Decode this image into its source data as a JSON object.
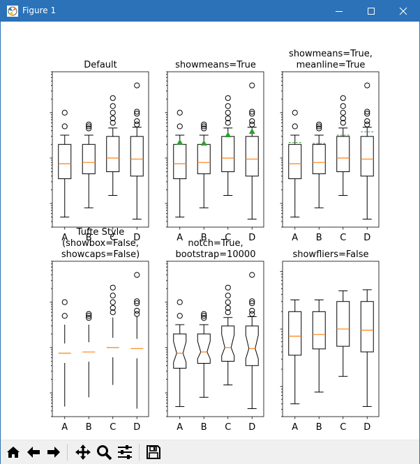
{
  "window": {
    "title": "Figure 1",
    "icons": [
      "matplotlib-app-icon",
      "minimize-icon",
      "maximize-icon",
      "close-icon"
    ]
  },
  "toolbar": {
    "buttons": [
      {
        "name": "home-icon"
      },
      {
        "name": "back-arrow-icon"
      },
      {
        "name": "forward-arrow-icon"
      },
      {
        "name": "pan-icon"
      },
      {
        "name": "zoom-icon"
      },
      {
        "name": "configure-subplots-icon"
      },
      {
        "name": "save-icon"
      }
    ]
  },
  "colors": {
    "titlebar": "#2b72b8",
    "median": "#ff7f0e",
    "mean": "#2ca02c",
    "box": "#000000"
  },
  "chart_data": [
    {
      "type": "box",
      "title": "Default",
      "categories": [
        "A",
        "B",
        "C",
        "D"
      ],
      "yscale": "log",
      "ylim": [
        0.03,
        80
      ],
      "yticklabels": "hidden",
      "showmeans": false,
      "meanline": false,
      "showbox": true,
      "showcaps": true,
      "showfliers": true,
      "notch": false,
      "series": [
        {
          "whislo": 0.05,
          "q1": 0.35,
          "med": 0.75,
          "q3": 2.0,
          "whishi": 3.2,
          "mean": 2.2,
          "fliers": [
            5,
            10
          ]
        },
        {
          "whislo": 0.08,
          "q1": 0.45,
          "med": 0.8,
          "q3": 2.0,
          "whishi": 3.2,
          "mean": 2.1,
          "fliers": [
            4.5,
            5,
            5.5
          ]
        },
        {
          "whislo": 0.15,
          "q1": 0.5,
          "med": 1.0,
          "q3": 3.0,
          "whishi": 4.6,
          "mean": 3.2,
          "fliers": [
            6,
            7.5,
            10,
            14,
            21
          ]
        },
        {
          "whislo": 0.045,
          "q1": 0.4,
          "med": 0.95,
          "q3": 3.0,
          "whishi": 4.8,
          "mean": 3.8,
          "fliers": [
            5.5,
            6.5,
            9.5,
            10.5,
            40
          ]
        }
      ]
    },
    {
      "type": "box",
      "title": "showmeans=True",
      "categories": [
        "A",
        "B",
        "C",
        "D"
      ],
      "yscale": "log",
      "ylim": [
        0.03,
        80
      ],
      "yticklabels": "hidden",
      "showmeans": true,
      "meanline": false,
      "showbox": true,
      "showcaps": true,
      "showfliers": true,
      "notch": false,
      "series": [
        {
          "whislo": 0.05,
          "q1": 0.35,
          "med": 0.75,
          "q3": 2.0,
          "whishi": 3.2,
          "mean": 2.2,
          "fliers": [
            5,
            10
          ]
        },
        {
          "whislo": 0.08,
          "q1": 0.45,
          "med": 0.8,
          "q3": 2.0,
          "whishi": 3.2,
          "mean": 2.1,
          "fliers": [
            4.5,
            5,
            5.5
          ]
        },
        {
          "whislo": 0.15,
          "q1": 0.5,
          "med": 1.0,
          "q3": 3.0,
          "whishi": 4.6,
          "mean": 3.2,
          "fliers": [
            6,
            7.5,
            10,
            14,
            21
          ]
        },
        {
          "whislo": 0.045,
          "q1": 0.4,
          "med": 0.95,
          "q3": 3.0,
          "whishi": 4.8,
          "mean": 3.8,
          "fliers": [
            5.5,
            6.5,
            9.5,
            10.5,
            40
          ]
        }
      ]
    },
    {
      "type": "box",
      "title": "showmeans=True,\nmeanline=True",
      "categories": [
        "A",
        "B",
        "C",
        "D"
      ],
      "yscale": "log",
      "ylim": [
        0.03,
        80
      ],
      "yticklabels": "hidden",
      "showmeans": true,
      "meanline": true,
      "showbox": true,
      "showcaps": true,
      "showfliers": true,
      "notch": false,
      "series": [
        {
          "whislo": 0.05,
          "q1": 0.35,
          "med": 0.75,
          "q3": 2.0,
          "whishi": 3.2,
          "mean": 2.2,
          "fliers": [
            5,
            10
          ]
        },
        {
          "whislo": 0.08,
          "q1": 0.45,
          "med": 0.8,
          "q3": 2.0,
          "whishi": 3.2,
          "mean": 2.1,
          "fliers": [
            4.5,
            5,
            5.5
          ]
        },
        {
          "whislo": 0.15,
          "q1": 0.5,
          "med": 1.0,
          "q3": 3.0,
          "whishi": 4.6,
          "mean": 3.2,
          "fliers": [
            6,
            7.5,
            10,
            14,
            21
          ]
        },
        {
          "whislo": 0.045,
          "q1": 0.4,
          "med": 0.95,
          "q3": 3.0,
          "whishi": 4.8,
          "mean": 3.8,
          "fliers": [
            5.5,
            6.5,
            9.5,
            10.5,
            40
          ]
        }
      ]
    },
    {
      "type": "box",
      "title": "Tufte Style\n(showbox=False,\nshowcaps=False)",
      "categories": [
        "A",
        "B",
        "C",
        "D"
      ],
      "yscale": "log",
      "ylim": [
        0.03,
        80
      ],
      "yticklabels": "hidden",
      "showmeans": false,
      "meanline": false,
      "showbox": false,
      "showcaps": false,
      "showfliers": true,
      "notch": false,
      "series": [
        {
          "whislo": 0.05,
          "q1": 0.35,
          "med": 0.75,
          "q3": 2.0,
          "whishi": 3.2,
          "mean": 2.2,
          "fliers": [
            5,
            10
          ]
        },
        {
          "whislo": 0.08,
          "q1": 0.45,
          "med": 0.8,
          "q3": 2.0,
          "whishi": 3.2,
          "mean": 2.1,
          "fliers": [
            4.5,
            5,
            5.5
          ]
        },
        {
          "whislo": 0.15,
          "q1": 0.5,
          "med": 1.0,
          "q3": 3.0,
          "whishi": 4.6,
          "mean": 3.2,
          "fliers": [
            6,
            7.5,
            10,
            14,
            21
          ]
        },
        {
          "whislo": 0.045,
          "q1": 0.4,
          "med": 0.95,
          "q3": 3.0,
          "whishi": 4.8,
          "mean": 3.8,
          "fliers": [
            5.5,
            6.5,
            9.5,
            10.5,
            40
          ]
        }
      ]
    },
    {
      "type": "box",
      "title": "notch=True,\nbootstrap=10000",
      "categories": [
        "A",
        "B",
        "C",
        "D"
      ],
      "yscale": "log",
      "ylim": [
        0.03,
        80
      ],
      "yticklabels": "hidden",
      "showmeans": false,
      "meanline": false,
      "showbox": true,
      "showcaps": true,
      "showfliers": true,
      "notch": true,
      "series": [
        {
          "whislo": 0.05,
          "q1": 0.35,
          "med": 0.75,
          "q3": 2.0,
          "whishi": 3.2,
          "mean": 2.2,
          "fliers": [
            5,
            10
          ]
        },
        {
          "whislo": 0.08,
          "q1": 0.45,
          "med": 0.8,
          "q3": 2.0,
          "whishi": 3.2,
          "mean": 2.1,
          "fliers": [
            4.5,
            5,
            5.5
          ]
        },
        {
          "whislo": 0.15,
          "q1": 0.5,
          "med": 1.0,
          "q3": 3.0,
          "whishi": 4.6,
          "mean": 3.2,
          "fliers": [
            6,
            7.5,
            10,
            14,
            21
          ]
        },
        {
          "whislo": 0.045,
          "q1": 0.4,
          "med": 0.95,
          "q3": 3.0,
          "whishi": 4.8,
          "mean": 3.8,
          "fliers": [
            5.5,
            6.5,
            9.5,
            10.5,
            40
          ]
        }
      ]
    },
    {
      "type": "box",
      "title": "showfliers=False",
      "categories": [
        "A",
        "B",
        "C",
        "D"
      ],
      "yscale": "log",
      "ylim": [
        0.03,
        15
      ],
      "yticklabels": "hidden",
      "showmeans": false,
      "meanline": false,
      "showbox": true,
      "showcaps": true,
      "showfliers": false,
      "notch": false,
      "series": [
        {
          "whislo": 0.05,
          "q1": 0.35,
          "med": 0.75,
          "q3": 2.0,
          "whishi": 3.2,
          "mean": 2.2,
          "fliers": []
        },
        {
          "whislo": 0.08,
          "q1": 0.45,
          "med": 0.8,
          "q3": 2.0,
          "whishi": 3.2,
          "mean": 2.1,
          "fliers": []
        },
        {
          "whislo": 0.15,
          "q1": 0.5,
          "med": 1.0,
          "q3": 3.0,
          "whishi": 4.6,
          "mean": 3.2,
          "fliers": []
        },
        {
          "whislo": 0.045,
          "q1": 0.4,
          "med": 0.95,
          "q3": 3.0,
          "whishi": 4.8,
          "mean": 3.8,
          "fliers": []
        }
      ]
    }
  ]
}
